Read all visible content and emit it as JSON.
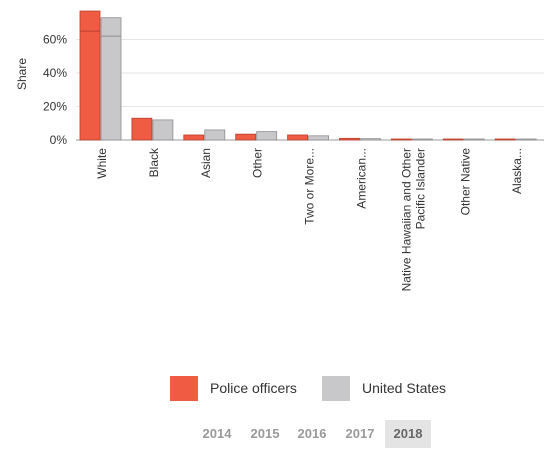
{
  "chart_data": {
    "type": "bar",
    "ylabel": "Share",
    "y_ticks": [
      "0%",
      "20%",
      "40%",
      "60%"
    ],
    "ylim": [
      0,
      77
    ],
    "categories": [
      "White",
      "Black",
      "Asian",
      "Other",
      "Two or More...",
      "American...",
      "Native Hawaiian and Other Pacific Islander",
      "Other Native",
      "Alaska..."
    ],
    "series": [
      {
        "name": "Police officers",
        "color": "#f05b43",
        "values": [
          77,
          13,
          3,
          3.5,
          3,
          1,
          0.3,
          0.2,
          0.2
        ],
        "inner_marks": [
          65,
          null,
          null,
          null,
          null,
          null,
          null,
          null,
          null
        ]
      },
      {
        "name": "United States",
        "color": "#c8c8cb",
        "values": [
          73,
          12,
          6,
          5,
          2.5,
          0.8,
          0.2,
          0.2,
          0.1
        ],
        "inner_marks": [
          62,
          null,
          null,
          null,
          null,
          null,
          null,
          null,
          null
        ]
      }
    ],
    "grid": true,
    "legend_position": "bottom"
  },
  "years": [
    "2014",
    "2015",
    "2016",
    "2017",
    "2018"
  ],
  "selected_year": "2018"
}
